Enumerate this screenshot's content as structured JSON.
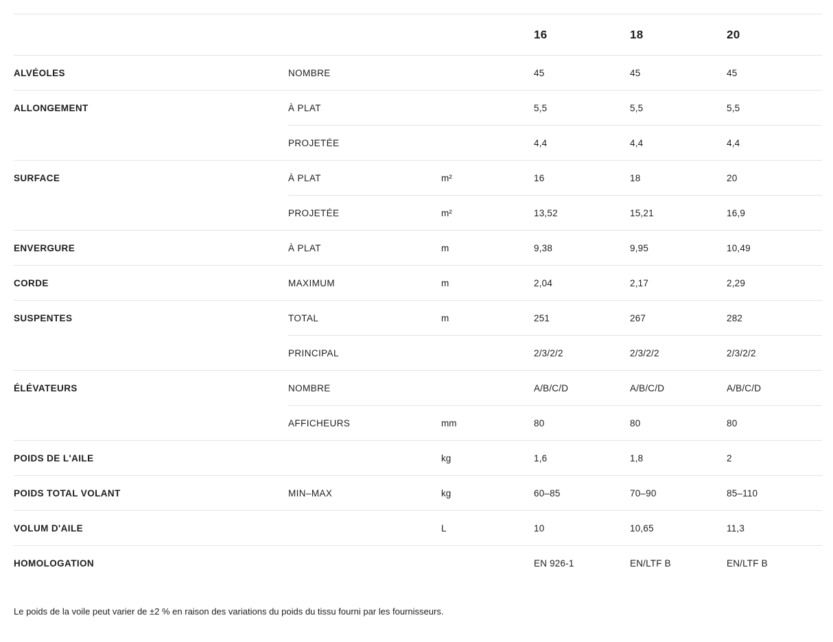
{
  "header": {
    "sizes": [
      "16",
      "18",
      "20"
    ]
  },
  "table": {
    "groups": [
      {
        "label": "ALVÉOLES",
        "rows": [
          {
            "sublabel": "NOMBRE",
            "unit": "",
            "values": [
              "45",
              "45",
              "45"
            ]
          }
        ]
      },
      {
        "label": "ALLONGEMENT",
        "rows": [
          {
            "sublabel": "À PLAT",
            "unit": "",
            "values": [
              "5,5",
              "5,5",
              "5,5"
            ]
          },
          {
            "sublabel": "PROJETÉE",
            "unit": "",
            "values": [
              "4,4",
              "4,4",
              "4,4"
            ]
          }
        ]
      },
      {
        "label": "SURFACE",
        "rows": [
          {
            "sublabel": "À PLAT",
            "unit": "m²",
            "values": [
              "16",
              "18",
              "20"
            ]
          },
          {
            "sublabel": "PROJETÉE",
            "unit": "m²",
            "values": [
              "13,52",
              "15,21",
              "16,9"
            ]
          }
        ]
      },
      {
        "label": "ENVERGURE",
        "rows": [
          {
            "sublabel": "À PLAT",
            "unit": "m",
            "values": [
              "9,38",
              "9,95",
              "10,49"
            ]
          }
        ]
      },
      {
        "label": "CORDE",
        "rows": [
          {
            "sublabel": "MAXIMUM",
            "unit": "m",
            "values": [
              "2,04",
              "2,17",
              "2,29"
            ]
          }
        ]
      },
      {
        "label": "SUSPENTES",
        "rows": [
          {
            "sublabel": "TOTAL",
            "unit": "m",
            "values": [
              "251",
              "267",
              "282"
            ]
          },
          {
            "sublabel": "PRINCIPAL",
            "unit": "",
            "values": [
              "2/3/2/2",
              "2/3/2/2",
              "2/3/2/2"
            ]
          }
        ]
      },
      {
        "label": "ÉLÉVATEURS",
        "rows": [
          {
            "sublabel": "NOMBRE",
            "unit": "",
            "values": [
              "A/B/C/D",
              "A/B/C/D",
              "A/B/C/D"
            ]
          },
          {
            "sublabel": "AFFICHEURS",
            "unit": "mm",
            "values": [
              "80",
              "80",
              "80"
            ]
          }
        ]
      },
      {
        "label": "POIDS DE L'AILE",
        "rows": [
          {
            "sublabel": "",
            "unit": "kg",
            "values": [
              "1,6",
              "1,8",
              "2"
            ]
          }
        ]
      },
      {
        "label": "POIDS TOTAL VOLANT",
        "rows": [
          {
            "sublabel": "MIN–MAX",
            "unit": "kg",
            "values": [
              "60–85",
              "70–90",
              "85–110"
            ]
          }
        ]
      },
      {
        "label": "VOLUM D'AILE",
        "rows": [
          {
            "sublabel": "",
            "unit": "L",
            "values": [
              "10",
              "10,65",
              "11,3"
            ]
          }
        ]
      },
      {
        "label": "HOMOLOGATION",
        "rows": [
          {
            "sublabel": "",
            "unit": "",
            "values": [
              "EN 926-1",
              "EN/LTF B",
              "EN/LTF B"
            ]
          }
        ]
      }
    ]
  },
  "footnote": "Le poids de la voile peut varier de ±2 % en raison des variations du poids du tissu fourni par les fournisseurs.",
  "colors": {
    "text": "#1d1d1f",
    "divider": "#e4e4e4",
    "background": "#ffffff"
  }
}
